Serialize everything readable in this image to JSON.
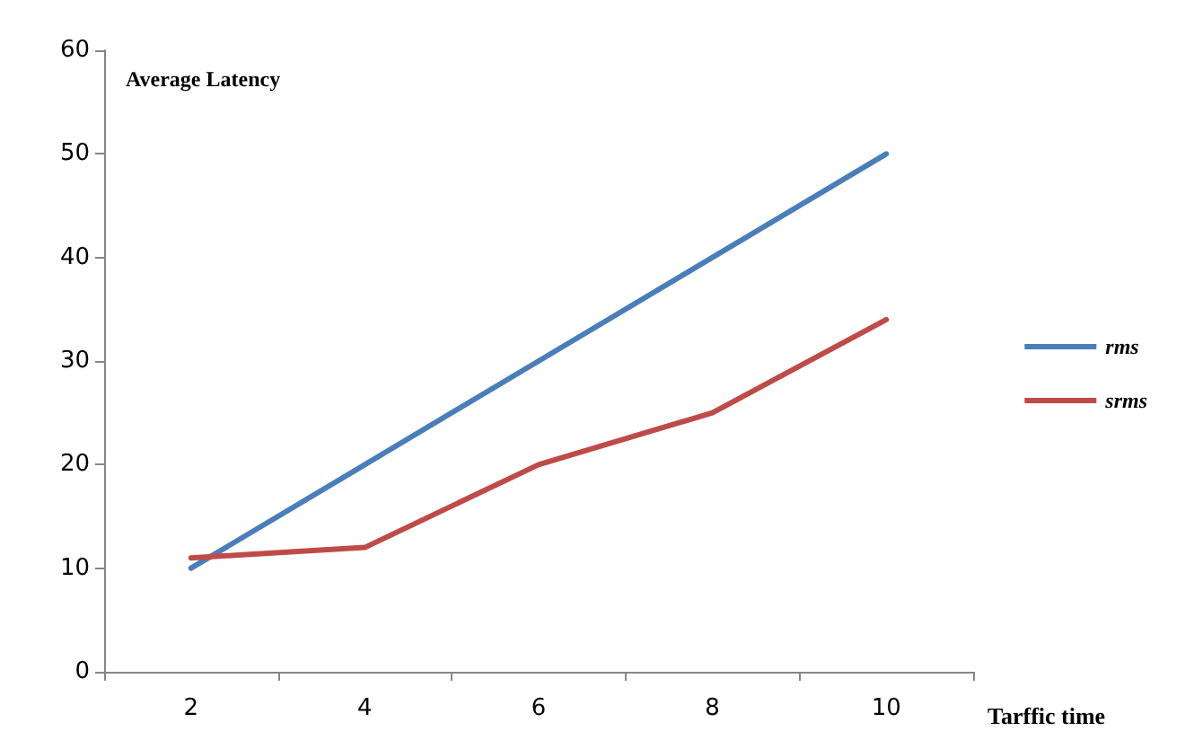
{
  "chart_data": {
    "type": "line",
    "ylabel": "Average Latency",
    "xlabel": "Tarffic time",
    "categories": [
      "2",
      "4",
      "6",
      "8",
      "10"
    ],
    "series": [
      {
        "name": "rms",
        "color": "#4a7ebb",
        "values": [
          10,
          20,
          30,
          40,
          50
        ]
      },
      {
        "name": "srms",
        "color": "#be4b48",
        "values": [
          11,
          12,
          20,
          25,
          34
        ]
      }
    ],
    "ylim": [
      0,
      60
    ],
    "yticks": [
      0,
      10,
      20,
      30,
      40,
      50,
      60
    ],
    "grid": false,
    "legend": "right",
    "marker": "none",
    "line_style": "solid"
  }
}
